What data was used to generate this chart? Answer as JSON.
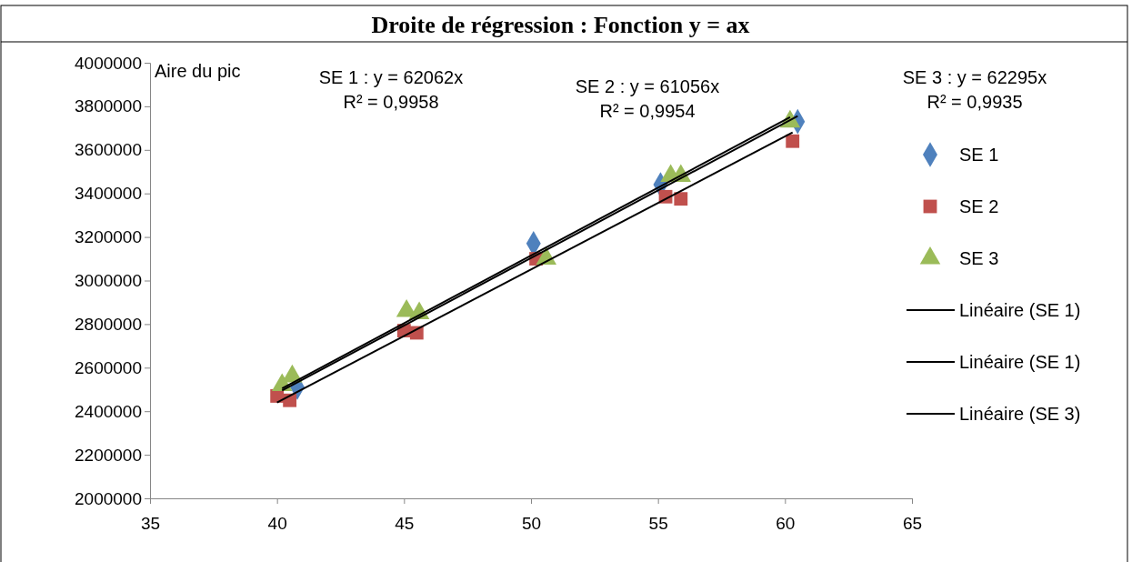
{
  "chart_data": {
    "type": "scatter",
    "title": "Droite de régression : Fonction y = ax",
    "ylabel": "Aire du pic",
    "xlim": [
      35,
      65
    ],
    "xticks": [
      35,
      40,
      45,
      50,
      55,
      60,
      65
    ],
    "ylim": [
      2000000,
      4000000
    ],
    "yticks": [
      2000000,
      2200000,
      2400000,
      2600000,
      2800000,
      3000000,
      3200000,
      3400000,
      3600000,
      3800000,
      4000000
    ],
    "grid": false,
    "legend": "right",
    "annotations": [
      "SE 1 : y = 62062x\nR² = 0,9958",
      "SE 2 : y = 61056x\nR² = 0,9954",
      "SE 3 : y = 62295x\nR² = 0,9935"
    ],
    "series": [
      {
        "name": "SE 1",
        "marker": "diamond",
        "color": "#4f81bd",
        "x": [
          40.8,
          45.3,
          50.1,
          50.3,
          55.1,
          55.9,
          60.2,
          60.5
        ],
        "values": [
          2510000,
          null,
          3170000,
          null,
          3440000,
          null,
          null,
          3730000
        ]
      },
      {
        "name": "SE 2",
        "marker": "square",
        "color": "#c0504d",
        "x": [
          40,
          40.5,
          45,
          45.5,
          50.2,
          55.3,
          55.9,
          60.3
        ],
        "values": [
          2470000,
          2450000,
          2770000,
          2760000,
          3100000,
          3385000,
          3375000,
          3640000
        ]
      },
      {
        "name": "SE 3",
        "marker": "triangle",
        "color": "#9bbb59",
        "x": [
          40.2,
          40.6,
          45.1,
          45.6,
          50.6,
          55.5,
          55.9,
          60.2
        ],
        "values": [
          2520000,
          2560000,
          2860000,
          2850000,
          3100000,
          3480000,
          3480000,
          3730000
        ]
      },
      {
        "name": "Linéaire (SE 1)",
        "type": "line",
        "marker": "none",
        "color": "#000000",
        "x": [
          40.2,
          60.5
        ],
        "values": [
          2495000,
          3755000
        ]
      },
      {
        "name": "Linéaire (SE 1)",
        "type": "line",
        "marker": "none",
        "color": "#000000",
        "x": [
          40,
          60.3
        ],
        "values": [
          2440000,
          3680000
        ]
      },
      {
        "name": "Linéaire (SE 3)",
        "type": "line",
        "marker": "none",
        "color": "#000000",
        "x": [
          40.2,
          60.2
        ],
        "values": [
          2505000,
          3750000
        ]
      }
    ]
  }
}
